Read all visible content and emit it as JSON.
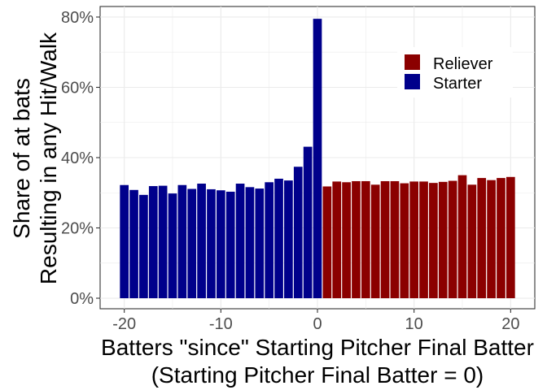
{
  "chart_data": {
    "type": "bar",
    "xlabel_line1": "Batters \"since\" Starting Pitcher Final Batter",
    "xlabel_line2": "(Starting Pitcher Final Batter = 0)",
    "ylabel_line1": "Share of at bats",
    "ylabel_line2": "Resulting in any Hit/Walk",
    "xlim": [
      -22.5,
      22.5
    ],
    "ylim": [
      -0.03,
      0.83
    ],
    "x_ticks": [
      -20,
      -10,
      0,
      10,
      20
    ],
    "x_tick_labels": [
      "-20",
      "-10",
      "0",
      "10",
      "20"
    ],
    "y_ticks": [
      0,
      0.2,
      0.4,
      0.6,
      0.8
    ],
    "y_tick_labels": [
      "0%",
      "20%",
      "40%",
      "60%",
      "80%"
    ],
    "grid": true,
    "legend_position": "top-right",
    "series": [
      {
        "name": "Reliever",
        "color": "#8b0000",
        "x": [
          1,
          2,
          3,
          4,
          5,
          6,
          7,
          8,
          9,
          10,
          11,
          12,
          13,
          14,
          15,
          16,
          17,
          18,
          19,
          20
        ],
        "values": [
          0.318,
          0.332,
          0.33,
          0.333,
          0.333,
          0.323,
          0.333,
          0.333,
          0.327,
          0.332,
          0.332,
          0.328,
          0.331,
          0.334,
          0.35,
          0.323,
          0.342,
          0.336,
          0.342,
          0.345
        ]
      },
      {
        "name": "Starter",
        "color": "#00008b",
        "x": [
          -20,
          -19,
          -18,
          -17,
          -16,
          -15,
          -14,
          -13,
          -12,
          -11,
          -10,
          -9,
          -8,
          -7,
          -6,
          -5,
          -4,
          -3,
          -2,
          -1,
          0
        ],
        "values": [
          0.322,
          0.308,
          0.294,
          0.319,
          0.32,
          0.298,
          0.322,
          0.311,
          0.326,
          0.31,
          0.307,
          0.303,
          0.326,
          0.316,
          0.312,
          0.33,
          0.34,
          0.335,
          0.374,
          0.431,
          0.795
        ]
      }
    ]
  }
}
